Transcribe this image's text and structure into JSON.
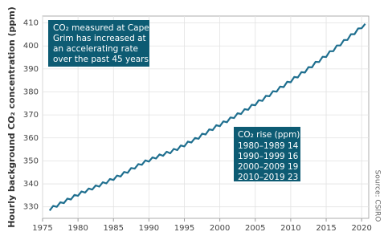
{
  "chart_data": {
    "type": "line",
    "y_label": "Hourly background CO₂ concentration (ppm)",
    "source": "Source: CSIRO",
    "color": "#1f6f8f",
    "grid": true,
    "xlim": [
      1975,
      2021
    ],
    "ylim": [
      325,
      413
    ],
    "xticks": [
      1975,
      1980,
      1985,
      1990,
      1995,
      2000,
      2005,
      2010,
      2015,
      2020
    ],
    "yticks": [
      330,
      340,
      350,
      360,
      370,
      380,
      390,
      400,
      410
    ],
    "annotation": [
      "CO₂ measured at Cape",
      "Grim has increased at",
      "an accelerating rate",
      "over the past 45 years."
    ],
    "rise_table": {
      "title": "CO₂ rise (ppm):",
      "rows": [
        [
          "1980–1989",
          14
        ],
        [
          "1990–1999",
          16
        ],
        [
          "2000–2009",
          19
        ],
        [
          "2010–2019",
          23
        ]
      ]
    },
    "x": [
      1976,
      1976.5,
      1977,
      1977.5,
      1978,
      1978.5,
      1979,
      1979.5,
      1980,
      1980.5,
      1981,
      1981.5,
      1982,
      1982.5,
      1983,
      1983.5,
      1984,
      1984.5,
      1985,
      1985.5,
      1986,
      1986.5,
      1987,
      1987.5,
      1988,
      1988.5,
      1989,
      1989.5,
      1990,
      1990.5,
      1991,
      1991.5,
      1992,
      1992.5,
      1993,
      1993.5,
      1994,
      1994.5,
      1995,
      1995.5,
      1996,
      1996.5,
      1997,
      1997.5,
      1998,
      1998.5,
      1999,
      1999.5,
      2000,
      2000.5,
      2001,
      2001.5,
      2002,
      2002.5,
      2003,
      2003.5,
      2004,
      2004.5,
      2005,
      2005.5,
      2006,
      2006.5,
      2007,
      2007.5,
      2008,
      2008.5,
      2009,
      2009.5,
      2010,
      2010.5,
      2011,
      2011.5,
      2012,
      2012.5,
      2013,
      2013.5,
      2014,
      2014.5,
      2015,
      2015.5,
      2016,
      2016.5,
      2017,
      2017.5,
      2018,
      2018.5,
      2019,
      2019.5,
      2020,
      2020.5
    ],
    "values": [
      328.4,
      330.4,
      330.0,
      332.0,
      331.6,
      333.6,
      333.2,
      335.2,
      334.8,
      336.7,
      336.2,
      338.0,
      337.5,
      339.3,
      338.8,
      340.7,
      340.2,
      342.1,
      341.7,
      343.6,
      343.2,
      345.2,
      344.8,
      346.9,
      346.6,
      348.6,
      348.3,
      350.2,
      349.7,
      351.5,
      351.0,
      352.8,
      352.2,
      354.0,
      353.3,
      355.2,
      354.7,
      356.7,
      356.3,
      358.4,
      358.0,
      360.0,
      359.6,
      361.8,
      361.5,
      363.7,
      363.4,
      365.5,
      365.1,
      367.2,
      366.8,
      368.9,
      368.6,
      370.7,
      370.4,
      372.5,
      372.2,
      374.4,
      374.2,
      376.4,
      376.1,
      378.3,
      378.1,
      380.3,
      380.1,
      382.3,
      382.1,
      384.4,
      384.2,
      386.5,
      386.3,
      388.6,
      388.4,
      390.8,
      390.7,
      393.1,
      393.0,
      395.3,
      395.2,
      397.7,
      397.7,
      400.2,
      400.2,
      402.6,
      402.6,
      405.1,
      405.1,
      407.6,
      407.7,
      409.6
    ]
  }
}
